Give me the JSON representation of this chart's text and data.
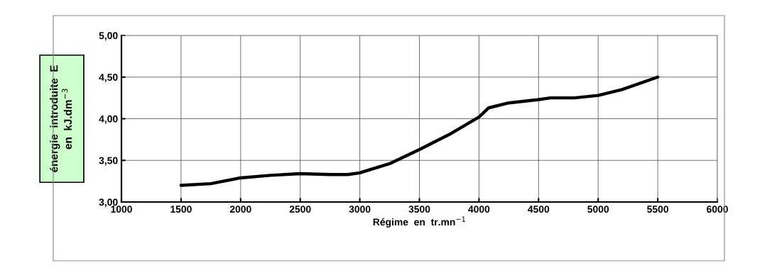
{
  "chart_data": {
    "type": "line",
    "xlabel": "Régime  en  tr.mn$^{−1}$",
    "ylabel": "énergie  introduite  E\nen  kJ.dm$^{−3}$",
    "x": [
      1500,
      1750,
      2000,
      2250,
      2500,
      2750,
      2900,
      3000,
      3250,
      3500,
      3750,
      4000,
      4030,
      4080,
      4250,
      4500,
      4600,
      4800,
      5000,
      5200,
      5500
    ],
    "series": [
      {
        "color": "#000000",
        "values": [
          3.2,
          3.22,
          3.29,
          3.32,
          3.34,
          3.33,
          3.33,
          3.35,
          3.46,
          3.63,
          3.81,
          4.02,
          4.06,
          4.13,
          4.19,
          4.23,
          4.25,
          4.25,
          4.28,
          4.35,
          4.5
        ]
      }
    ],
    "xlim": [
      1000,
      6000
    ],
    "xticks": [
      1000,
      1500,
      2000,
      2500,
      3000,
      3500,
      4000,
      4500,
      5000,
      5500,
      6000
    ],
    "ylim": [
      3,
      5
    ],
    "yticks": [
      {
        "value": 3,
        "label": "3,00"
      },
      {
        "value": 3.5,
        "label": "3,50"
      },
      {
        "value": 4,
        "label": "4,00"
      },
      {
        "value": 4.5,
        "label": "4,50"
      },
      {
        "value": 5,
        "label": "5,00"
      }
    ],
    "grid": true,
    "marker": "none",
    "line_style": "solid",
    "legend": false
  }
}
